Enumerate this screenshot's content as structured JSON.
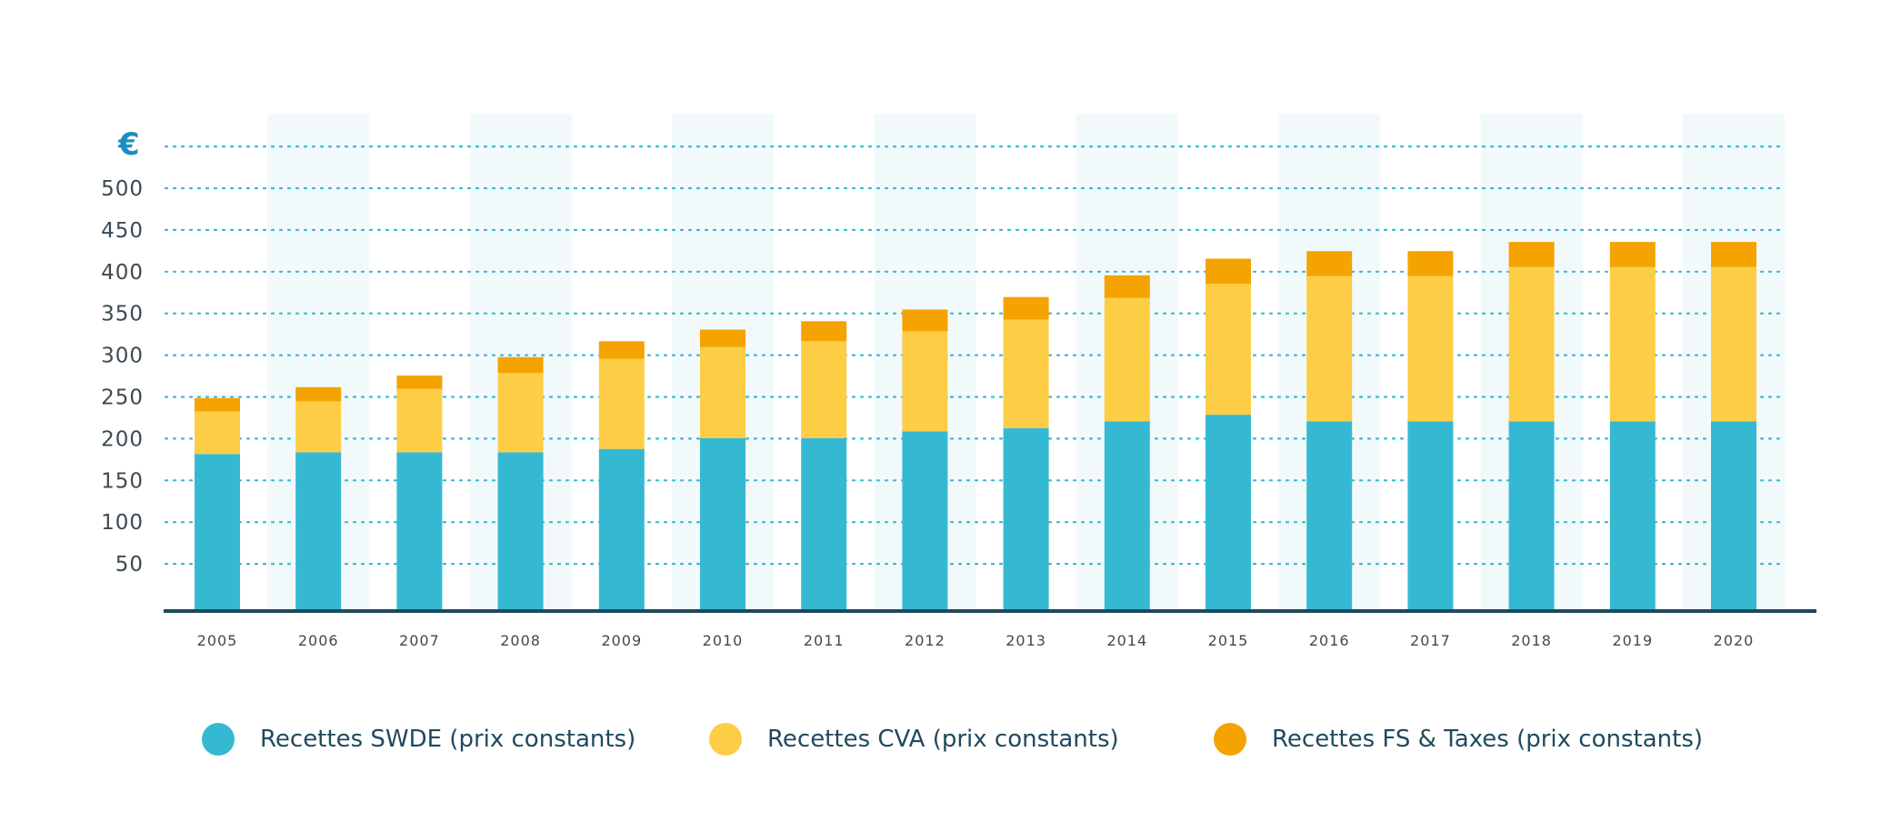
{
  "chart_data": {
    "type": "bar",
    "stacked": true,
    "y_unit": "€",
    "categories": [
      "2005",
      "2006",
      "2007",
      "2008",
      "2009",
      "2010",
      "2011",
      "2012",
      "2013",
      "2014",
      "2015",
      "2016",
      "2017",
      "2018",
      "2019",
      "2020"
    ],
    "series": [
      {
        "name": "Recettes SWDE (prix constants)",
        "color": "#35b9d2",
        "values": [
          186,
          188,
          188,
          188,
          192,
          205,
          205,
          213,
          217,
          225,
          233,
          225,
          225,
          225,
          225,
          225
        ]
      },
      {
        "name": "Recettes CVA (prix constants)",
        "color": "#fdcd46",
        "values": [
          51,
          61,
          76,
          95,
          108,
          109,
          116,
          120,
          130,
          148,
          157,
          174,
          174,
          185,
          185,
          185
        ]
      },
      {
        "name": "Recettes FS & Taxes (prix constants)",
        "color": "#f5a300",
        "values": [
          16,
          17,
          16,
          19,
          21,
          21,
          24,
          26,
          27,
          27,
          30,
          30,
          30,
          30,
          30,
          30
        ]
      }
    ],
    "yticks": [
      "50",
      "100",
      "150",
      "200",
      "250",
      "300",
      "350",
      "400",
      "450",
      "500"
    ],
    "ylim": [
      0,
      550
    ],
    "grid": true,
    "legend_position": "bottom"
  }
}
